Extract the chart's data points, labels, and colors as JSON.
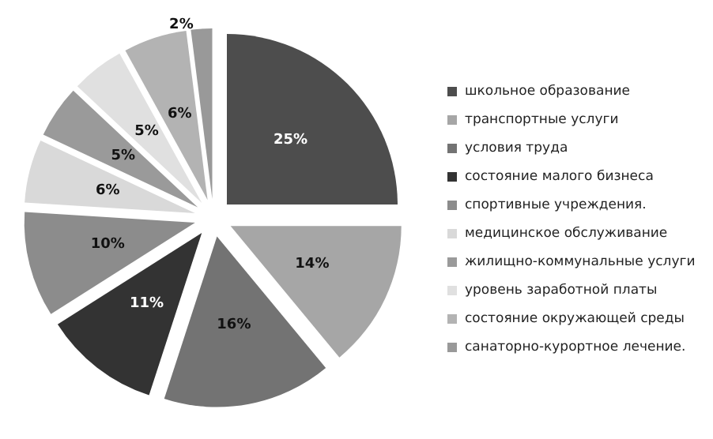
{
  "chart_data": {
    "type": "pie",
    "categories": [
      "школьное образование",
      "транспортные услуги",
      "условия труда",
      "состояние малого бизнеса",
      "спортивные учреждения.",
      "медицинское обслуживание",
      "жилищно-коммунальные услуги",
      "уровень заработной платы",
      "состояние окружающей среды",
      "санаторно-курортное лечение."
    ],
    "values": [
      25,
      14,
      16,
      11,
      10,
      6,
      5,
      5,
      6,
      2
    ],
    "colors": [
      "#4d4d4d",
      "#a6a6a6",
      "#737373",
      "#333333",
      "#8c8c8c",
      "#d9d9d9",
      "#9a9a9a",
      "#e0e0e0",
      "#b3b3b3",
      "#999999"
    ],
    "value_labels": [
      "25%",
      "14%",
      "16%",
      "11%",
      "10%",
      "6%",
      "5%",
      "5%",
      "6%",
      "2%"
    ],
    "legend": "right"
  }
}
